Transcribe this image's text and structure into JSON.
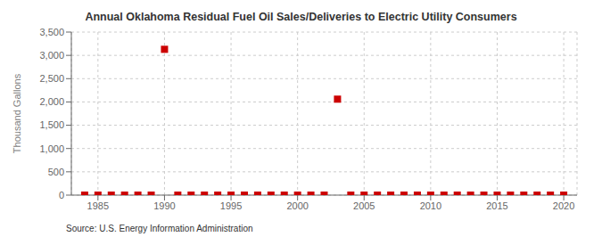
{
  "chart_data": {
    "type": "scatter",
    "title": "Annual Oklahoma Residual Fuel Oil Sales/Deliveries to Electric Utility Consumers",
    "ylabel": "Thousand Gallons",
    "annotation": "Source: U.S. Energy Information Administration",
    "x": [
      1984,
      1985,
      1986,
      1987,
      1988,
      1989,
      1990,
      1991,
      1992,
      1993,
      1994,
      1995,
      1996,
      1997,
      1998,
      1999,
      2000,
      2001,
      2002,
      2003,
      2004,
      2005,
      2006,
      2007,
      2008,
      2009,
      2010,
      2011,
      2012,
      2013,
      2014,
      2015,
      2016,
      2017,
      2018,
      2019,
      2020
    ],
    "values": [
      0,
      0,
      0,
      0,
      0,
      0,
      3130,
      0,
      0,
      0,
      0,
      0,
      0,
      0,
      0,
      0,
      0,
      0,
      0,
      2060,
      0,
      0,
      0,
      0,
      0,
      0,
      0,
      0,
      0,
      0,
      0,
      0,
      0,
      0,
      0,
      0,
      0
    ],
    "color": "#cc0000",
    "marker": "square",
    "xlim": [
      1983,
      2021
    ],
    "xticks": [
      1985,
      1990,
      1995,
      2000,
      2005,
      2010,
      2015,
      2020
    ],
    "ylim": [
      0,
      3500
    ],
    "yticks": [
      0,
      500,
      {
        "value": 1000,
        "label": "1,000"
      },
      {
        "value": 1500,
        "label": "1,500"
      },
      {
        "value": 2000,
        "label": "2,000"
      },
      {
        "value": 2500,
        "label": "2,500"
      },
      {
        "value": 3000,
        "label": "3,000"
      },
      {
        "value": 3500,
        "label": "3,500"
      }
    ],
    "grid": true
  }
}
